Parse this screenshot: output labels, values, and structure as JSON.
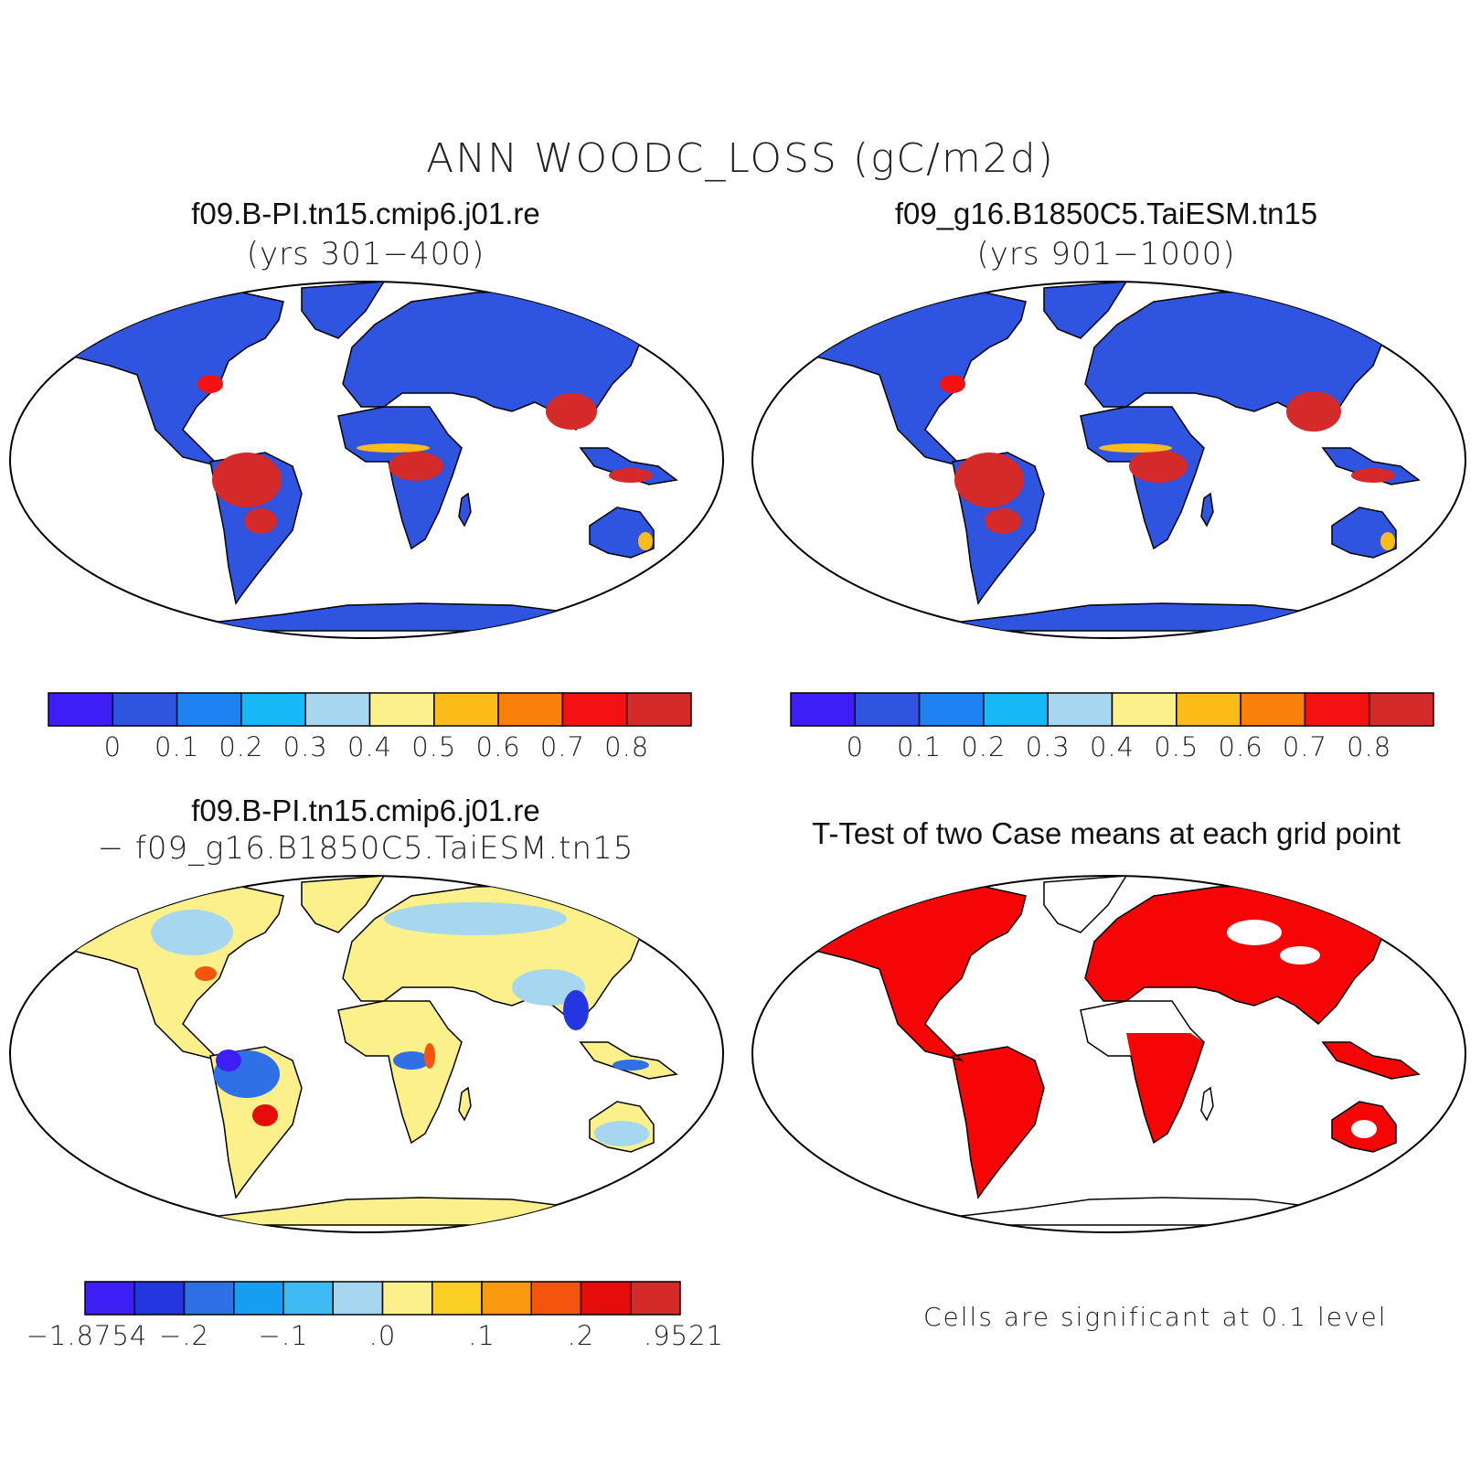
{
  "title": "ANN WOODC_LOSS (gC/m2d)",
  "panels": {
    "top_left": {
      "title": "f09.B-PI.tn15.cmip6.j01.re",
      "subtitle": "(yrs 301−400)"
    },
    "top_right": {
      "title": "f09_g16.B1850C5.TaiESM.tn15",
      "subtitle": "(yrs 901−1000)"
    },
    "bottom_left": {
      "title": "f09.B-PI.tn15.cmip6.j01.re",
      "subtitle": "− f09_g16.B1850C5.TaiESM.tn15"
    },
    "bottom_right": {
      "title": "T-Test of two Case means at each grid point",
      "note": "Cells are significant at 0.1 level"
    }
  },
  "colorbars": {
    "case": {
      "colors": [
        "#3d1ef5",
        "#2e54e0",
        "#1e82f0",
        "#16b8f5",
        "#a6d6f0",
        "#fbf08a",
        "#fbbc1a",
        "#f77f0a",
        "#f21212",
        "#d42a2a"
      ],
      "labels": [
        "0",
        "0.1",
        "0.2",
        "0.3",
        "0.4",
        "0.5",
        "0.6",
        "0.7",
        "0.8"
      ]
    },
    "diff": {
      "colors": [
        "#3d1ef5",
        "#2436e0",
        "#2f70e6",
        "#169ef2",
        "#3fbaf2",
        "#a6d6f0",
        "#fbf08a",
        "#fbcf25",
        "#f99a10",
        "#f5540f",
        "#e60c0c",
        "#d42a2a"
      ],
      "labels": [
        "−1.8754",
        "−.2",
        "−.1",
        ".0",
        ".1",
        ".2",
        ".9521"
      ]
    }
  },
  "map_colors": {
    "base_blue": "#2e54e0",
    "tropics_red": "#d42a2a",
    "diff_yellow": "#fbf08a",
    "diff_lightblue": "#a6d6f0",
    "ttest_red": "#f50505"
  }
}
